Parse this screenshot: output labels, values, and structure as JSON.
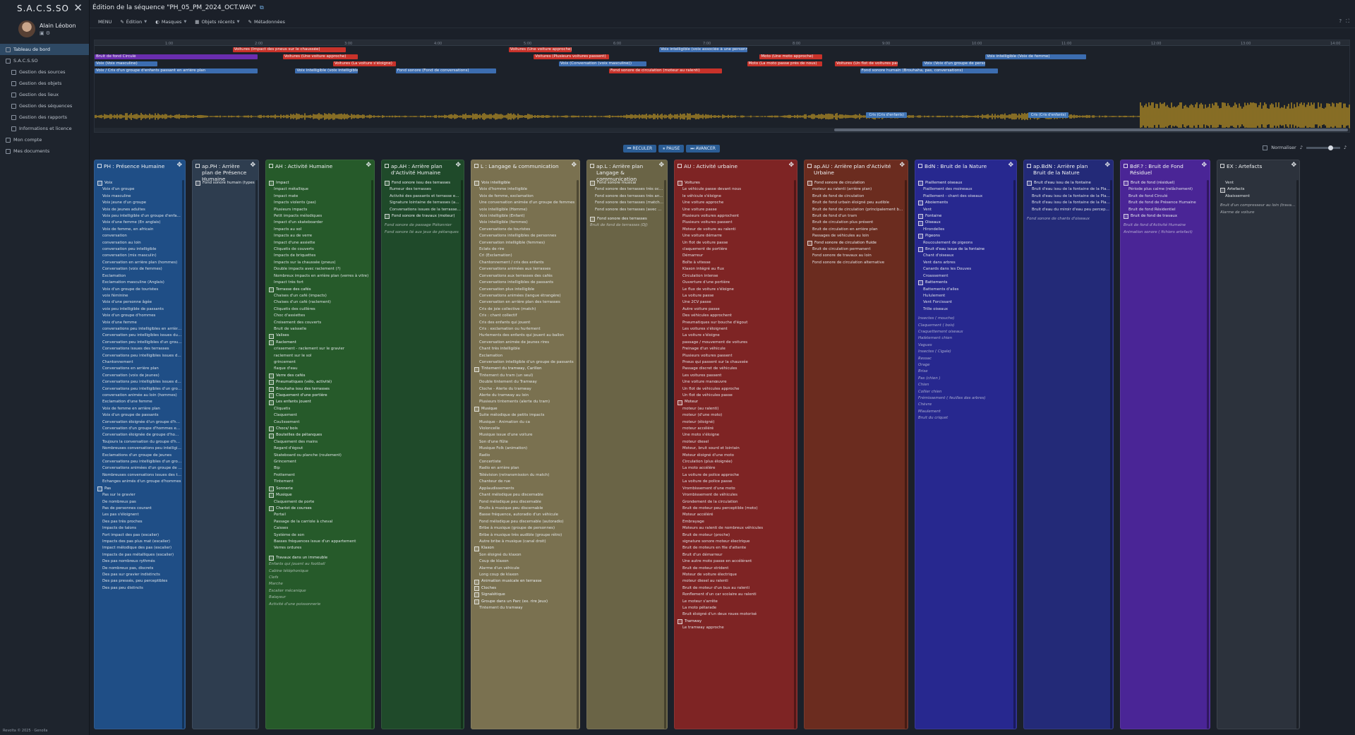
{
  "app": {
    "name": "S.A.C.S.SO",
    "user": "Alain Léobon",
    "footer": "Revolta © 2025 · Genolla"
  },
  "sidebar": {
    "items": [
      {
        "label": "Tableau de bord",
        "sub": false,
        "active": true
      },
      {
        "label": "S.A.C.S.SO",
        "sub": false,
        "active": false
      },
      {
        "label": "Gestion des sources",
        "sub": true,
        "active": false
      },
      {
        "label": "Gestion des objets",
        "sub": true,
        "active": false
      },
      {
        "label": "Gestion des lieux",
        "sub": true,
        "active": false
      },
      {
        "label": "Gestion des séquences",
        "sub": true,
        "active": false
      },
      {
        "label": "Gestion des rapports",
        "sub": true,
        "active": false
      },
      {
        "label": "Informations et licence",
        "sub": true,
        "active": false
      },
      {
        "label": "Mon compte",
        "sub": false,
        "active": false
      },
      {
        "label": "Mes documents",
        "sub": false,
        "active": false
      }
    ]
  },
  "header": {
    "title": "Édition de la séquence \"PH_05_PM_2024_OCT.WAV\"",
    "link_icon": "external-link-icon"
  },
  "menubar": {
    "menu": "MENU",
    "items": [
      "Édition",
      "Masques",
      "Objets récents",
      "Métadonnées"
    ]
  },
  "timeline": {
    "ticks": [
      "1:00",
      "2:00",
      "3:00",
      "4:00",
      "5:00",
      "6:00",
      "7:00",
      "8:00",
      "9:00",
      "10:00",
      "11:00",
      "12:00",
      "13:00",
      "14:00"
    ],
    "clips": [
      {
        "label": "Voitures (Impact des pneus sur le chaussée)",
        "color": "#c8322a",
        "row": 0,
        "start": 0.11,
        "len": 0.09
      },
      {
        "label": "Voitures (Une voiture approche)",
        "color": "#c8322a",
        "row": 0,
        "start": 0.33,
        "len": 0.05
      },
      {
        "label": "Voix intelligible (voix associée à une personne)",
        "color": "#3c6db0",
        "row": 0,
        "start": 0.45,
        "len": 0.07
      },
      {
        "label": "Bruit de fond Circulé",
        "color": "#6a2db0",
        "row": 1,
        "start": 0.0,
        "len": 0.13
      },
      {
        "label": "Voitures (Une voiture approche)",
        "color": "#c8322a",
        "row": 1,
        "start": 0.15,
        "len": 0.06
      },
      {
        "label": "Voitures (Plusieurs voitures passent)",
        "color": "#c8322a",
        "row": 1,
        "start": 0.35,
        "len": 0.06
      },
      {
        "label": "Moto (Une moto approche)",
        "color": "#c8322a",
        "row": 1,
        "start": 0.53,
        "len": 0.05
      },
      {
        "label": "Voix intelligible (Voix de femme)",
        "color": "#3c6db0",
        "row": 1,
        "start": 0.71,
        "len": 0.08
      },
      {
        "label": "Voix (Voix masculine)",
        "color": "#3c6db0",
        "row": 2,
        "start": 0.0,
        "len": 0.05
      },
      {
        "label": "Voitures (La voiture s'éloigne)",
        "color": "#c8322a",
        "row": 2,
        "start": 0.19,
        "len": 0.05
      },
      {
        "label": "Voix (Conversation (voix masculine))",
        "color": "#3c6db0",
        "row": 2,
        "start": 0.37,
        "len": 0.07
      },
      {
        "label": "Moto (La moto passe près de nous)",
        "color": "#c8322a",
        "row": 2,
        "start": 0.52,
        "len": 0.06
      },
      {
        "label": "Voitures (Un flot de voitures passe)",
        "color": "#c8322a",
        "row": 2,
        "start": 0.59,
        "len": 0.05
      },
      {
        "label": "Voix (Voix d'un groupe de personnes)",
        "color": "#3c6db0",
        "row": 2,
        "start": 0.66,
        "len": 0.05
      },
      {
        "label": "Voix / Cris d'un groupe d'enfants passant en arrière plan",
        "color": "#3c6db0",
        "row": 3,
        "start": 0.0,
        "len": 0.13
      },
      {
        "label": "Voix intelligible (voix intelligible)",
        "color": "#3c6db0",
        "row": 3,
        "start": 0.16,
        "len": 0.05
      },
      {
        "label": "Fond sonore (Fond de conversations)",
        "color": "#3c6db0",
        "row": 3,
        "start": 0.24,
        "len": 0.08
      },
      {
        "label": "Fond sonore de circulation (moteur au ralenti)",
        "color": "#c8322a",
        "row": 3,
        "start": 0.41,
        "len": 0.09
      },
      {
        "label": "Fond sonore humain (Brouhaha, pas, conversations)",
        "color": "#3c6db0",
        "row": 3,
        "start": 0.61,
        "len": 0.11
      }
    ],
    "markers": [
      "Cris (Cris d'enfants)",
      "Cris (Cris d'enfants)"
    ],
    "marker_pos": [
      0.615,
      0.744
    ]
  },
  "transport": [
    "RECULER",
    "PAUSE",
    "AVANCER"
  ],
  "normaliser": {
    "label": "Normaliser"
  },
  "columns": [
    {
      "title": "PH : Présence Humaine",
      "color": "#1f4e86",
      "items": [
        "+Voix",
        "Voix d'un groupe",
        "Voix masculine",
        "Voix jeune d'un groupe",
        "Voix de jeunes adultes",
        "Voix peu intelligible d'un groupe d'enfants",
        "Voix d'une femme (En anglais)",
        "Voix de femme, en africain",
        "conversation",
        "conversation au loin",
        "conversation peu intelligible",
        "conversation (mix masculin)",
        "Conversation en arrière plan (hommes)",
        "Conversation (voix de femmes)",
        "Exclamation",
        "Exclamation masculine (Anglais)",
        "Voix d'un groupe de touristes",
        "voix féminine",
        "Voix d'une personne âgée",
        "voix peu intelligible de passants",
        "Voix d'un groupe d'hommes",
        "Voix d'une femme",
        "conversations peu intelligibles en arrière plan",
        "Conversation peu intelligibles issues du brouhaha",
        "Conversation peu intelligibles d'un groupe de femmes",
        "Conversations issues des terrasses",
        "Conversations peu intelligibles issues des terrasses",
        "Chantonnement",
        "Conversations en arrière plan",
        "Conversation (voix de jeunes)",
        "Conversations peu intelligibles issues des terrasses",
        "Conversations peu intelligibles d'un groupe d'hommes",
        "conversation animée au loin (hommes)",
        "Exclamation d'une femme",
        "Voix de femme en arrière plan",
        "Voix d'un groupe de passants",
        "Conversation éloignée d'un groupe d'hommes",
        "Conversation d'un groupe d'hommes en langue étrangère",
        "Conversation éloignée de groupe d'hommes",
        "Toujours la conversation du groupe d'hommes",
        "Nombreuses conversations peu intelligibles",
        "Exclamations d'un groupe de jeunes",
        "Conversations peu intelligibles d'un groupe de jeunes",
        "Conversations animées d'un groupe de jeunes",
        "Nombreuses conversations issues des terrasses peu intelligible",
        "Echanges animés d'un groupe d'hommes",
        "+Pas",
        "Pas sur le gravier",
        "De nombreux pas",
        "Pas de personnes courant",
        "Les pas s'éloignent",
        "Des pas très proches",
        "Impacts de talons",
        "Fort impact des pas (escalier)",
        "Impacts des pas plus mat (escalier)",
        "Impact mélodique des pas (escalier)",
        "Impacts de pas métalliques (escalier)",
        "Des pas nombreux rythmés",
        "De nombreux pas, discrets",
        "Des pas sur gravier indistincts",
        "Des pas pressés, peu perceptibles",
        "Des pas peu distincts"
      ]
    },
    {
      "title": "ap.PH : Arrière plan de Présence Humaine",
      "color": "#2e3d4f",
      "items": [
        "+Fond sonore humain (types de)"
      ]
    },
    {
      "title": "AH : Activité Humaine",
      "color": "#265a2a",
      "items": [
        "+Impact",
        "Impact métallique",
        "Impact mate",
        "Impacts violents (pas)",
        "Plusieurs impacts",
        "Petit impacts mélodiques",
        "Impact d'un skateboarder",
        "Impacts au sol",
        "Impacts au de verre",
        "Impact d'une assiette",
        "Cliquetis de couverts",
        "Impacts de briquettes",
        "Impacts sur la chaussée (pneus)",
        "Double impacts avec raclement (?)",
        "Nombreux impacts en arrière plan (verres à vitre)",
        "Impact très fort",
        "+Terrasse des cafés",
        "Chaises d'un café (impacts)",
        "Chaises d'un café (raclement)",
        "Cliquetis des cuillères",
        "Choc d'assiettes",
        "Croisement des couverts",
        "Bruit de vaisselle",
        "+Valises",
        "+Raclement",
        "crissement - raclement sur le gravier",
        "raclement sur le sol",
        "grincement",
        "flaque d'eau",
        "+Verre des cafés",
        "+Pneumatiques (vélo, activité)",
        "+Brouhaha issu des terrasses",
        "+Claquement d'une portière",
        "+Les enfants jouent",
        "Cliquetis",
        "Claquement",
        "Coulissement",
        "+Chocs/ bois",
        "+Bouteilles de pétanques",
        "Claquement des mains",
        "Regard d'égout",
        "Skateboard ou planche (roulement)",
        "Grincement",
        "Bip",
        "Frottement",
        "Tintement",
        "+Sonnerie",
        "+Musique",
        "Claquement de porte",
        "+Chariot de courses",
        "Portail",
        "Passage de la carriole à cheval",
        "Caisses",
        "Système de son",
        "Basses fréquences issue d'un appartement",
        "Verres ordures",
        "",
        "+Travaux dans un immeuble",
        "~Enfants qui jouent au football",
        "~Cabine téléphonique",
        "~Clefs",
        "~Marche",
        "~Escalier mécanique",
        "~Balayeur",
        "~Activité d'une poissonnerie"
      ]
    },
    {
      "title": "ap.AH : Arrière plan d'Activité Humaine",
      "color": "#1f4a2a",
      "items": [
        "+Fond sonore issu des terrasses",
        "Rumeur des terrasses",
        "Activité des passants et terrasse en arrière plan",
        "Signature lointaine de terrasses (avec fond musical)",
        "Conversations issues de la terrasse du café",
        "+Fond sonore de travaux (moteur)",
        "",
        "~Fond sonore de passage Piétonnier",
        "~Fond sonore lié aux jeux de pétanques"
      ]
    },
    {
      "title": "L : Langage & communication",
      "color": "#7a7150",
      "items": [
        "+Voix intelligible",
        "Voix d'homme intelligible",
        "Voix de femme, exclamation",
        "Une conversation animée d'un groupe de femmes",
        "voix intelligible (Homme)",
        "Voix intelligible (Enfant)",
        "Voix intelligible (femmes)",
        "Conversations de touristes",
        "Conversations intelligibles de personnes",
        "Conversation intelligible (femmes)",
        "Eclats de rire",
        "Cri (Exclamation)",
        "Chantonnement / cris des enfants",
        "Conversations animées aux terrasses",
        "Conversations aux terrasses des cafés",
        "Conversations intelligibles de passants",
        "Conversation plus intelligible",
        "Conversations animées (langue étrangère)",
        "Conversation en arrière plan des terrasses",
        "Cris de joie collective (match)",
        "Cris : chant collectif",
        "Cris des enfants qui jouent",
        "Cris : exclamation ou hurlement",
        "Hurlements des enfants qui jouent au ballon",
        "Conversation animée de jeunes rires",
        "Chant très intelligible",
        "Exclamation",
        "Conversation intelligible d'un groupe de passants",
        "+Tintement du tramway, Carillon",
        "Tintement du tram (un seul)",
        "Double tintement du Tramway",
        "Cloche - Alerte du tramway",
        "Alerte du tramway au loin",
        "Plusieurs tintements (alerte du tram)",
        "+Musique",
        "Suite mélodique de petits impacts",
        "Musique - Animation du ca",
        "Violoncelle",
        "Musique issue d'une voiture",
        "Son d'une flûte",
        "Musique Folk (animation)",
        "Radio",
        "Concertiste",
        "Radio en arrière plan",
        "Télévision (retransmission du match)",
        "Chanteur de rue",
        "Applaudissements",
        "Chant mélodique peu discernable",
        "Fond mélodique peu discernable",
        "Bruits à musique peu discernable",
        "Basse fréquence, autoradio d'un véhicule",
        "Fond mélodique peu discernable (autoradio)",
        "Bribe à musique (groupe de personnes)",
        "Bribe à musique très audible (groupe rétro)",
        "Autre bribe à musique (canal droit)",
        "+Klaxon",
        "Son éloigné du klaxon",
        "Coup de klaxon",
        "Alarme d'un véhicule",
        "Long coup de klaxon",
        "+Animation musicale en terrasse",
        "+Cloches",
        "+Signalétique",
        "+Groupe dans un Parc (ex. rire Jeux)",
        "Tintement du tramway"
      ]
    },
    {
      "title": "ap.L : Arrière plan Langage & communication",
      "color": "#6a6446",
      "items": [
        "+Fond sonore musical",
        "Fond sonore des terrasses très occupées",
        "Fond sonore des terrasses très animées",
        "Fond sonore des terrasses (match de sport)",
        "Fond sonore des terrasses (avec musique)",
        "",
        "+Fond sonore des terrasses",
        "~Bruit de fond de terrasses (DJ)"
      ]
    },
    {
      "title": "AU : Activité urbaine",
      "color": "#7e2424",
      "items": [
        "+Voitures",
        "Le véhicule passe devant nous",
        "le véhicule s'éloigne",
        "Une voiture approche",
        "Une voiture passe",
        "Plusieurs voitures approchent",
        "Plusieurs voitures passent",
        "Moteur de voiture au ralenti",
        "Une voiture démarre",
        "Un flot de voiture passe",
        "claquement de portière",
        "Démarreur",
        "Boîte à vitesse",
        "Klaxon intégré au flux",
        "Circulation intense",
        "Ouverture d'une portière",
        "Le flux de voiture s'éloigne",
        "La voiture passe",
        "Une 2CV passe",
        "Autre voiture passe",
        "Des véhicules approchent",
        "Pneumatiques sur bouche d'égout",
        "Les voitures s'éloignent",
        "La voiture s'éloigne",
        "passage / mouvement de voitures",
        "Freinage d'un véhicule",
        "Plusieurs voitures passent",
        "Pneus qui passent sur la chaussée",
        "Passage discret de véhicules",
        "Les voitures passent",
        "Une voiture manœuvre",
        "Un flot de véhicules approche",
        "Un flot de véhicules passe",
        "+Moteur",
        "moteur (au ralenti)",
        "moteur (d'une moto)",
        "moteur (éloigné)",
        "moteur accéléré",
        "Une moto s'éloigne",
        "moteur diesel",
        "Moteur, bruit sourd et lointain",
        "Moteur éloigné d'une moto",
        "Circulation (plus éloignée)",
        "La moto accélère",
        "La voiture de police approche",
        "La voiture de police passe",
        "Vrombissement d'une moto",
        "Vrombissement de véhicules",
        "Grondement de la circulation",
        "Bruit de moteur peu perceptible (moto)",
        "Moteur accéléré",
        "Embrayage",
        "Moteurs au ralenti de nombreux véhicules",
        "Bruit de moteur (proche)",
        "signature sonore moteur électrique",
        "Bruit de moteurs en file d'attente",
        "Bruit d'un démarreur",
        "Une autre moto passe en accélérant",
        "Bruit de moteur strident",
        "Moteur de voiture électrique",
        "moteur diesel au ralenti",
        "Bruit de moteur d'un bus au ralenti",
        "Ronflement d'un car scolaire au ralenti",
        "Le moteur s'arrête",
        "La moto pétarade",
        "Bruit éloigné d'un deux roues motorisé",
        "+Tramway",
        "Le tramway approche"
      ]
    },
    {
      "title": "ap.AU : Arrière plan d'Activité Urbaine",
      "color": "#6b2c1f",
      "items": [
        "+Fond sonore de circulation",
        "moteur au ralenti (arrière plan)",
        "Bruit de fond de circulation",
        "Bruit de fond urbain éloigné peu audible",
        "Bruit de fond de circulation (principalement bus et tramways)",
        "Bruit de fond d'un tram",
        "Bruit de circulation plus présent",
        "Bruit de circulation en arrière plan",
        "Passages de véhicules au loin",
        "+Fond sonore de circulation fluide",
        "Bruit de circulation permanent",
        "Fond sonore de travaux au loin",
        "Fond sonore de circulation alternative"
      ]
    },
    {
      "title": "BdN : Bruit de la Nature",
      "color": "#27288f",
      "items": [
        "+Piaillement oiseaux",
        "Piaillement des moineaux",
        "Piaillement - chant des oiseaux",
        "+Aboiements",
        "Vent",
        "+Fontaine",
        "+Oiseaux",
        "Hirondelles",
        "+Pigeons",
        "Roucoulement de pigeons",
        "+Bruit d'eau issue de la fontaine",
        "Chant d'oiseaux",
        "Vent dans arbres",
        "Canards dans les Douves",
        "Croassement",
        "+Battements",
        "Battements d'ailes",
        "Hululement",
        "Vent Forcissant",
        "Trille oiseaux",
        "",
        "~Insectes ( mouche)",
        "~Claquement ( bois)",
        "~Craquettement oiseaux",
        "~Halètement chien",
        "~Vagues",
        "~Insectes ( Cigale)",
        "~Ressac",
        "~Orage",
        "~Brise",
        "~Pas (chien )",
        "~Chien",
        "~Collier chien",
        "~Frémissement ( feuilles des arbres)",
        "~Chèvre",
        "~Miaulement",
        "~Bruit du criquet"
      ]
    },
    {
      "title": "ap.BdN : Arrière plan Bruit de la Nature",
      "color": "#232a78",
      "items": [
        "+Bruit d'eau issu de la fontaine",
        "Bruit d'eau issu de la fontaine de la Place Graslin",
        "Bruit d'eau issu de la fontaine de la Place du Commerce",
        "Bruit d'eau issu de la fontaine de la Place Royale",
        "Bruit d'eau du miroir d'eau peu perceptible",
        "",
        "~Fond sonore de chants d'oiseaux"
      ]
    },
    {
      "title": "BdF.? : Bruit de Fond Résiduel",
      "color": "#4a2596",
      "items": [
        "+Bruit de fond (résiduel)",
        "Période plus calme (relâchement)",
        "Bruit de fond Circulé",
        "Bruit de fond de Présence Humaine",
        "Bruit de fond Résidentiel",
        "+Bruit de fond de travaux",
        "",
        "~Bruit de fond d'Activité Humaine",
        "~Animation sonore ( fichiers artefact)"
      ]
    },
    {
      "title": "EX : Artefacts",
      "color": "#2c323c",
      "items": [
        "Vent",
        "+Artefacts",
        "Abaissement",
        "",
        "~Bruit d'un compresseur au loin (travaux)",
        "~Alarme de voiture"
      ]
    }
  ]
}
